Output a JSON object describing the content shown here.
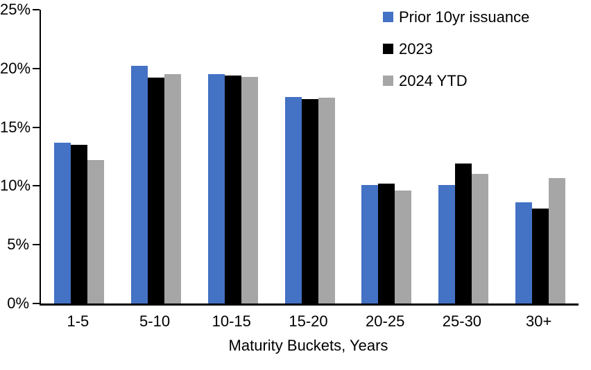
{
  "chart_data": {
    "type": "bar",
    "title": "",
    "categories": [
      "1-5",
      "5-10",
      "10-15",
      "15-20",
      "20-25",
      "25-30",
      "30+"
    ],
    "series": [
      {
        "name": "Prior 10yr issuance",
        "color": "#4472C4",
        "values": [
          13.7,
          20.2,
          19.5,
          17.6,
          10.1,
          10.1,
          8.6
        ]
      },
      {
        "name": "2023",
        "color": "#000000",
        "values": [
          13.5,
          19.2,
          19.4,
          17.4,
          10.2,
          11.9,
          8.1
        ]
      },
      {
        "name": "2024 YTD",
        "color": "#A6A6A6",
        "values": [
          12.2,
          19.5,
          19.3,
          17.5,
          9.6,
          11.0,
          10.7
        ]
      }
    ],
    "xlabel": "Maturity Buckets, Years",
    "ylabel": "",
    "ylim": [
      0,
      25
    ],
    "ytick_step": 5,
    "ytick_labels": [
      "0%",
      "5%",
      "10%",
      "15%",
      "20%",
      "25%"
    ],
    "grid": false,
    "legend_position": "top-right",
    "axis_color": "#000000",
    "background": "#FFFFFF"
  }
}
